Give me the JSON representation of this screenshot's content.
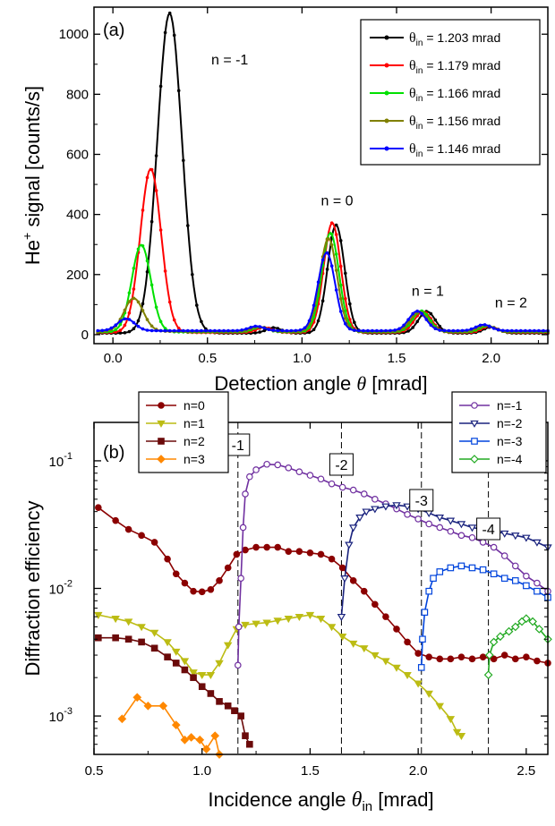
{
  "chart_data": [
    {
      "type": "line",
      "panel_label": "(a)",
      "ylabel_base": "He",
      "ylabel_sup": "+",
      "ylabel_rest": " signal [counts/s]",
      "xlabel_main": "Detection angle ",
      "xlabel_sym": "θ",
      "xlabel_unit": " [mrad]",
      "xlim": [
        -0.1,
        2.3
      ],
      "ylim": [
        -30,
        1090
      ],
      "xticks": [
        "0.0",
        "0.5",
        "1.0",
        "1.5",
        "2.0"
      ],
      "xtick_values": [
        0.0,
        0.5,
        1.0,
        1.5,
        2.0
      ],
      "yticks": [
        "0",
        "200",
        "400",
        "600",
        "800",
        "1000"
      ],
      "ytick_values": [
        0,
        200,
        400,
        600,
        800,
        1000
      ],
      "annotations": [
        {
          "text": "n = -1",
          "x": 0.52,
          "y": 900
        },
        {
          "text": "n = 0",
          "x": 1.1,
          "y": 430
        },
        {
          "text": "n = 1",
          "x": 1.58,
          "y": 130
        },
        {
          "text": "n = 2",
          "x": 2.02,
          "y": 90
        }
      ],
      "legend_position": "top-right",
      "series": [
        {
          "name": "1.203 mrad",
          "color": "#000000",
          "peaks": [
            [
              0.3,
              1065,
              0.065
            ],
            [
              1.18,
              360,
              0.045
            ],
            [
              1.66,
              72,
              0.045
            ],
            [
              2.0,
              20,
              0.04
            ],
            [
              0.85,
              18,
              0.04
            ]
          ]
        },
        {
          "name": "1.179 mrad",
          "color": "#ff0000",
          "peaks": [
            [
              0.2,
              545,
              0.055
            ],
            [
              1.16,
              365,
              0.045
            ],
            [
              1.64,
              70,
              0.045
            ],
            [
              1.99,
              20,
              0.04
            ],
            [
              0.8,
              17,
              0.04
            ]
          ]
        },
        {
          "name": "1.166 mrad",
          "color": "#00e000",
          "peaks": [
            [
              0.15,
              290,
              0.05
            ],
            [
              1.15,
              330,
              0.045
            ],
            [
              1.63,
              70,
              0.045
            ],
            [
              1.98,
              20,
              0.04
            ],
            [
              0.78,
              16,
              0.04
            ]
          ]
        },
        {
          "name": "1.156 mrad",
          "color": "#808000",
          "peaks": [
            [
              0.11,
              110,
              0.05
            ],
            [
              1.14,
              310,
              0.045
            ],
            [
              1.62,
              65,
              0.045
            ],
            [
              1.97,
              20,
              0.04
            ],
            [
              0.77,
              15,
              0.04
            ]
          ]
        },
        {
          "name": "1.146 mrad",
          "color": "#0000ff",
          "peaks": [
            [
              0.07,
              40,
              0.045
            ],
            [
              1.13,
              260,
              0.045
            ],
            [
              1.61,
              65,
              0.045
            ],
            [
              1.96,
              20,
              0.04
            ],
            [
              0.76,
              15,
              0.04
            ]
          ]
        }
      ],
      "legend_label_sym": "θ",
      "legend_label_sub": "in",
      "legend_label_eq": " = "
    },
    {
      "type": "scatter",
      "panel_label": "(b)",
      "ylabel": "Diffraction efficiency",
      "xlabel_main": "Incidence angle ",
      "xlabel_sym": "θ",
      "xlabel_sub": "in",
      "xlabel_unit": " [mrad]",
      "xlim": [
        0.5,
        2.6
      ],
      "ylim": [
        0.0005,
        0.2
      ],
      "yscale": "log",
      "xticks": [
        "0.5",
        "1.0",
        "1.5",
        "2.0",
        "2.5"
      ],
      "xtick_values": [
        0.5,
        1.0,
        1.5,
        2.0,
        2.5
      ],
      "yticks": [
        {
          "base": "10",
          "exp": "-3",
          "value": 0.001
        },
        {
          "base": "10",
          "exp": "-2",
          "value": 0.01
        },
        {
          "base": "10",
          "exp": "-1",
          "value": 0.1
        }
      ],
      "thresholds": [
        {
          "label": "-1",
          "x": 1.166
        },
        {
          "label": "-2",
          "x": 1.645
        },
        {
          "label": "-3",
          "x": 2.015
        },
        {
          "label": "-4",
          "x": 2.325
        }
      ],
      "series": [
        {
          "name": "n=0",
          "color": "#8b0000",
          "marker": "circle",
          "fill": true,
          "points": [
            [
              0.52,
              0.043
            ],
            [
              0.6,
              0.034
            ],
            [
              0.66,
              0.029
            ],
            [
              0.72,
              0.026
            ],
            [
              0.78,
              0.023
            ],
            [
              0.84,
              0.017
            ],
            [
              0.88,
              0.013
            ],
            [
              0.92,
              0.011
            ],
            [
              0.96,
              0.0095
            ],
            [
              1.0,
              0.0094
            ],
            [
              1.04,
              0.0098
            ],
            [
              1.08,
              0.0115
            ],
            [
              1.12,
              0.0145
            ],
            [
              1.16,
              0.0185
            ],
            [
              1.2,
              0.02
            ],
            [
              1.25,
              0.021
            ],
            [
              1.3,
              0.021
            ],
            [
              1.35,
              0.021
            ],
            [
              1.4,
              0.0195
            ],
            [
              1.45,
              0.0195
            ],
            [
              1.5,
              0.019
            ],
            [
              1.55,
              0.0185
            ],
            [
              1.6,
              0.017
            ],
            [
              1.65,
              0.0145
            ],
            [
              1.7,
              0.0115
            ],
            [
              1.75,
              0.0095
            ],
            [
              1.8,
              0.0075
            ],
            [
              1.85,
              0.006
            ],
            [
              1.9,
              0.0048
            ],
            [
              1.95,
              0.0038
            ],
            [
              2.0,
              0.0031
            ],
            [
              2.05,
              0.0029
            ],
            [
              2.1,
              0.0028
            ],
            [
              2.15,
              0.0028
            ],
            [
              2.2,
              0.0029
            ],
            [
              2.25,
              0.0028
            ],
            [
              2.3,
              0.0029
            ],
            [
              2.35,
              0.0028
            ],
            [
              2.4,
              0.003
            ],
            [
              2.45,
              0.0028
            ],
            [
              2.5,
              0.0029
            ],
            [
              2.55,
              0.0027
            ],
            [
              2.6,
              0.0026
            ]
          ]
        },
        {
          "name": "n=1",
          "color": "#bcbc14",
          "marker": "triangle-down",
          "fill": true,
          "points": [
            [
              0.52,
              0.0062
            ],
            [
              0.6,
              0.0058
            ],
            [
              0.66,
              0.0055
            ],
            [
              0.72,
              0.005
            ],
            [
              0.78,
              0.0045
            ],
            [
              0.84,
              0.0038
            ],
            [
              0.88,
              0.0032
            ],
            [
              0.92,
              0.0027
            ],
            [
              0.96,
              0.0022
            ],
            [
              1.0,
              0.0021
            ],
            [
              1.04,
              0.0021
            ],
            [
              1.08,
              0.0026
            ],
            [
              1.12,
              0.0036
            ],
            [
              1.16,
              0.0048
            ],
            [
              1.2,
              0.0052
            ],
            [
              1.25,
              0.0053
            ],
            [
              1.3,
              0.0054
            ],
            [
              1.35,
              0.0056
            ],
            [
              1.4,
              0.0058
            ],
            [
              1.45,
              0.006
            ],
            [
              1.5,
              0.0062
            ],
            [
              1.55,
              0.0058
            ],
            [
              1.6,
              0.005
            ],
            [
              1.65,
              0.0042
            ],
            [
              1.7,
              0.0037
            ],
            [
              1.75,
              0.0034
            ],
            [
              1.8,
              0.003
            ],
            [
              1.85,
              0.0027
            ],
            [
              1.9,
              0.0024
            ],
            [
              1.95,
              0.0021
            ],
            [
              2.0,
              0.0018
            ],
            [
              2.05,
              0.0015
            ],
            [
              2.1,
              0.0012
            ],
            [
              2.15,
              0.00095
            ],
            [
              2.18,
              0.00075
            ],
            [
              2.2,
              0.0007
            ]
          ]
        },
        {
          "name": "n=2",
          "color": "#6b0a0a",
          "marker": "square",
          "fill": true,
          "points": [
            [
              0.52,
              0.0041
            ],
            [
              0.6,
              0.0041
            ],
            [
              0.66,
              0.004
            ],
            [
              0.72,
              0.0038
            ],
            [
              0.78,
              0.0034
            ],
            [
              0.84,
              0.0029
            ],
            [
              0.88,
              0.0026
            ],
            [
              0.92,
              0.0023
            ],
            [
              0.96,
              0.002
            ],
            [
              1.0,
              0.0017
            ],
            [
              1.04,
              0.0015
            ],
            [
              1.08,
              0.0013
            ],
            [
              1.12,
              0.0012
            ],
            [
              1.15,
              0.0011
            ],
            [
              1.18,
              0.001
            ],
            [
              1.2,
              0.0007
            ],
            [
              1.22,
              0.0006
            ]
          ]
        },
        {
          "name": "n=3",
          "color": "#ff8800",
          "marker": "diamond",
          "fill": true,
          "points": [
            [
              0.63,
              0.00095
            ],
            [
              0.7,
              0.0014
            ],
            [
              0.75,
              0.0012
            ],
            [
              0.82,
              0.0012
            ],
            [
              0.88,
              0.00085
            ],
            [
              0.92,
              0.00065
            ],
            [
              0.95,
              0.00068
            ],
            [
              0.99,
              0.00065
            ],
            [
              1.02,
              0.00055
            ],
            [
              1.06,
              0.0007
            ],
            [
              1.08,
              0.0005
            ]
          ]
        },
        {
          "name": "n=-1",
          "color": "#7030a0",
          "marker": "circle",
          "fill": false,
          "points": [
            [
              1.166,
              0.0025
            ],
            [
              1.17,
              0.005
            ],
            [
              1.18,
              0.012
            ],
            [
              1.19,
              0.03
            ],
            [
              1.2,
              0.055
            ],
            [
              1.22,
              0.075
            ],
            [
              1.25,
              0.085
            ],
            [
              1.3,
              0.094
            ],
            [
              1.35,
              0.093
            ],
            [
              1.4,
              0.088
            ],
            [
              1.45,
              0.082
            ],
            [
              1.5,
              0.077
            ],
            [
              1.55,
              0.072
            ],
            [
              1.6,
              0.066
            ],
            [
              1.65,
              0.062
            ],
            [
              1.7,
              0.059
            ],
            [
              1.75,
              0.055
            ],
            [
              1.8,
              0.05
            ],
            [
              1.85,
              0.046
            ],
            [
              1.9,
              0.042
            ],
            [
              1.95,
              0.038
            ],
            [
              2.0,
              0.035
            ],
            [
              2.05,
              0.032
            ],
            [
              2.1,
              0.03
            ],
            [
              2.15,
              0.028
            ],
            [
              2.2,
              0.026
            ],
            [
              2.25,
              0.025
            ],
            [
              2.3,
              0.023
            ],
            [
              2.35,
              0.021
            ],
            [
              2.4,
              0.018
            ],
            [
              2.45,
              0.015
            ],
            [
              2.5,
              0.0125
            ],
            [
              2.55,
              0.011
            ],
            [
              2.6,
              0.0095
            ]
          ]
        },
        {
          "name": "n=-2",
          "color": "#1a237e",
          "marker": "triangle-down",
          "fill": false,
          "points": [
            [
              1.645,
              0.006
            ],
            [
              1.66,
              0.012
            ],
            [
              1.68,
              0.022
            ],
            [
              1.7,
              0.03
            ],
            [
              1.73,
              0.036
            ],
            [
              1.76,
              0.04
            ],
            [
              1.8,
              0.042
            ],
            [
              1.85,
              0.044
            ],
            [
              1.9,
              0.045
            ],
            [
              1.95,
              0.044
            ],
            [
              2.0,
              0.042
            ],
            [
              2.05,
              0.039
            ],
            [
              2.1,
              0.036
            ],
            [
              2.15,
              0.034
            ],
            [
              2.2,
              0.032
            ],
            [
              2.25,
              0.03
            ],
            [
              2.3,
              0.029
            ],
            [
              2.35,
              0.028
            ],
            [
              2.4,
              0.027
            ],
            [
              2.45,
              0.026
            ],
            [
              2.5,
              0.025
            ],
            [
              2.55,
              0.023
            ],
            [
              2.6,
              0.021
            ]
          ]
        },
        {
          "name": "n=-3",
          "color": "#0044dd",
          "marker": "square",
          "fill": false,
          "points": [
            [
              2.015,
              0.0024
            ],
            [
              2.02,
              0.004
            ],
            [
              2.03,
              0.0065
            ],
            [
              2.05,
              0.0095
            ],
            [
              2.07,
              0.012
            ],
            [
              2.1,
              0.0135
            ],
            [
              2.15,
              0.0145
            ],
            [
              2.2,
              0.015
            ],
            [
              2.25,
              0.0145
            ],
            [
              2.3,
              0.014
            ],
            [
              2.35,
              0.013
            ],
            [
              2.4,
              0.012
            ],
            [
              2.45,
              0.0115
            ],
            [
              2.5,
              0.0105
            ],
            [
              2.55,
              0.0095
            ],
            [
              2.6,
              0.0085
            ]
          ]
        },
        {
          "name": "n=-4",
          "color": "#22aa22",
          "marker": "diamond",
          "fill": false,
          "points": [
            [
              2.325,
              0.0021
            ],
            [
              2.33,
              0.003
            ],
            [
              2.35,
              0.0038
            ],
            [
              2.38,
              0.0042
            ],
            [
              2.42,
              0.0046
            ],
            [
              2.45,
              0.005
            ],
            [
              2.48,
              0.0055
            ],
            [
              2.5,
              0.0058
            ],
            [
              2.53,
              0.0055
            ],
            [
              2.56,
              0.0048
            ],
            [
              2.6,
              0.004
            ]
          ]
        }
      ]
    }
  ]
}
